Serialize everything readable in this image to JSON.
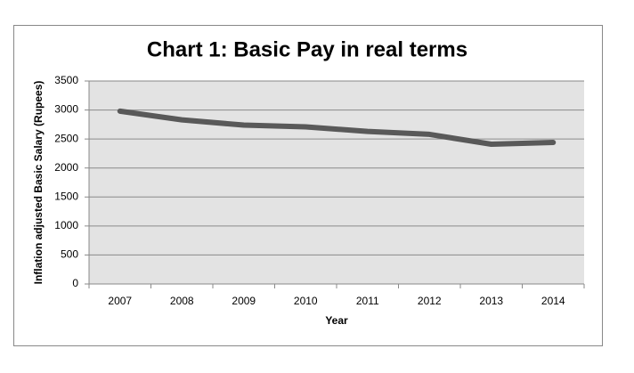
{
  "chart_data": {
    "type": "line",
    "title": "Chart 1: Basic Pay in real terms",
    "x_label": "Year",
    "y_label": "Inflation adjusted Basic Salary (Rupees)",
    "categories": [
      "2007",
      "2008",
      "2009",
      "2010",
      "2011",
      "2012",
      "2013",
      "2014"
    ],
    "series": [
      {
        "name": "Basic Pay",
        "color": "#595959",
        "values": [
          2980,
          2830,
          2740,
          2710,
          2630,
          2580,
          2410,
          2440
        ]
      }
    ],
    "ylim": [
      0,
      3500
    ],
    "yticks": [
      0,
      500,
      1000,
      1500,
      2000,
      2500,
      3000,
      3500
    ],
    "grid": true
  }
}
